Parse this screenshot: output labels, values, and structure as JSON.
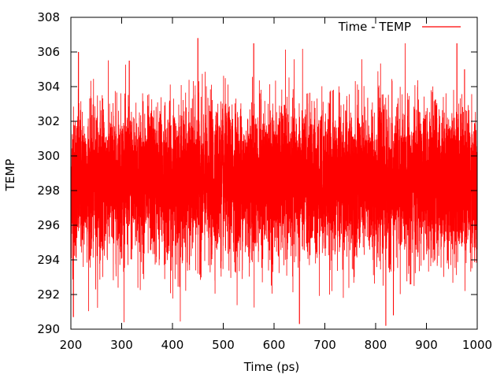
{
  "chart_data": {
    "type": "line",
    "title": "",
    "xlabel": "Time (ps)",
    "ylabel": "TEMP",
    "xlim": [
      200,
      1000
    ],
    "ylim": [
      290,
      308
    ],
    "x_ticks": [
      200,
      300,
      400,
      500,
      600,
      700,
      800,
      900,
      1000
    ],
    "y_ticks": [
      290,
      292,
      294,
      296,
      298,
      300,
      302,
      304,
      306,
      308
    ],
    "grid": false,
    "legend_position": "top-right",
    "series": [
      {
        "name": "Time - TEMP",
        "color": "#ff0000",
        "sampling": "dense noisy trace, approximately 1 sample per 0.1 ps",
        "x_start": 200,
        "x_end": 1000,
        "mean": 298.5,
        "typical_range": [
          294,
          303
        ],
        "upper_spikes": [
          {
            "x": 215,
            "y": 306.0
          },
          {
            "x": 315,
            "y": 305.5
          },
          {
            "x": 450,
            "y": 306.8
          },
          {
            "x": 560,
            "y": 306.5
          },
          {
            "x": 960,
            "y": 306.5
          },
          {
            "x": 975,
            "y": 305.0
          }
        ],
        "lower_spikes": [
          {
            "x": 205,
            "y": 290.7
          },
          {
            "x": 650,
            "y": 290.3
          },
          {
            "x": 820,
            "y": 290.2
          },
          {
            "x": 835,
            "y": 290.8
          }
        ]
      }
    ]
  }
}
